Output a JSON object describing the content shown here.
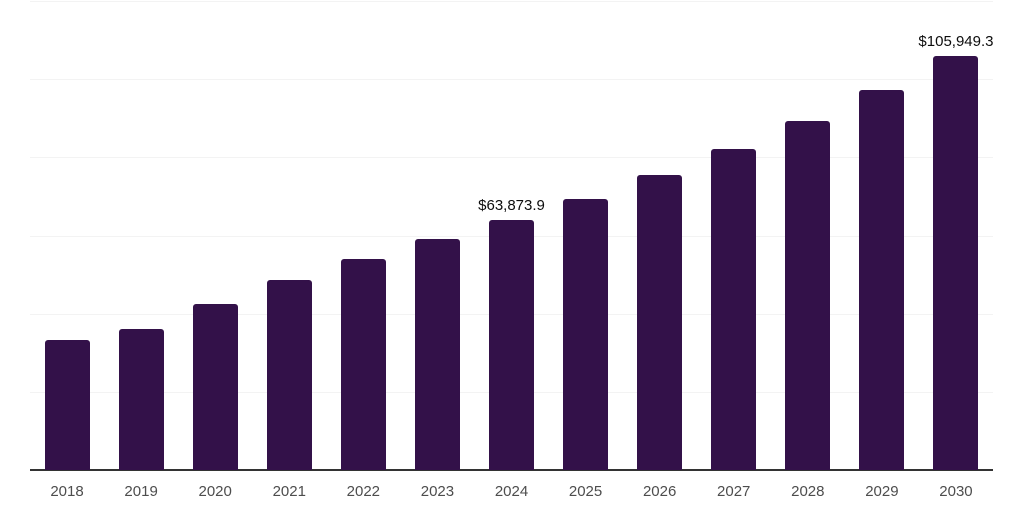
{
  "chart_data": {
    "type": "bar",
    "title": "",
    "xlabel": "",
    "ylabel": "",
    "categories": [
      "2018",
      "2019",
      "2020",
      "2021",
      "2022",
      "2023",
      "2024",
      "2025",
      "2026",
      "2027",
      "2028",
      "2029",
      "2030"
    ],
    "values": [
      33300,
      36100,
      42500,
      48600,
      54000,
      59100,
      63873.9,
      69300,
      75500,
      82100,
      89300,
      97200,
      105949.3
    ],
    "data_labels": [
      null,
      null,
      null,
      null,
      null,
      null,
      "$63,873.9",
      null,
      null,
      null,
      null,
      null,
      "$105,949.3"
    ],
    "ylim": [
      0,
      120000
    ],
    "gridline_step": 20000,
    "grid": "horizontal",
    "legend": "none",
    "y_axis_tick_labels_visible": false,
    "colors": {
      "bar": "#331149",
      "axis_line": "#333333",
      "gridline": "#f3f3f3",
      "data_label_text": "#0d0d0d",
      "tick_label_text": "#4d4d4d",
      "background": "#ffffff"
    }
  }
}
